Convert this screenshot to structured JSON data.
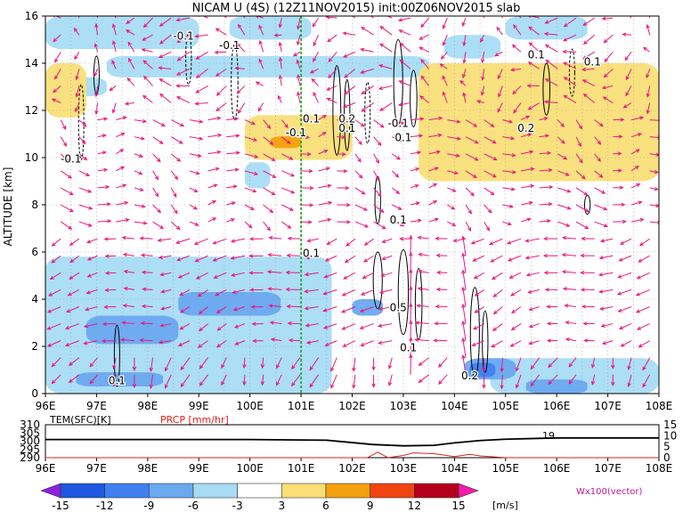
{
  "title": "NICAM U (4S) (12Z11NOV2015) init:00Z06NOV2015 slab",
  "main_panel": {
    "ylabel": "ALTITUDE [km]",
    "yticks": [
      "0",
      "2",
      "4",
      "6",
      "8",
      "10",
      "12",
      "14",
      "16"
    ],
    "xticks": [
      "96E",
      "97E",
      "98E",
      "99E",
      "100E",
      "101E",
      "102E",
      "103E",
      "104E",
      "105E",
      "106E",
      "107E",
      "108E"
    ],
    "vertical_marker_lon": 101,
    "contour_labels": [
      {
        "text": "-0.1",
        "lon": 98.7,
        "alt": 15.0
      },
      {
        "text": "-0.1",
        "lon": 99.6,
        "alt": 14.6
      },
      {
        "text": "-0.1",
        "lon": 96.5,
        "alt": 9.8
      },
      {
        "text": "-0.1",
        "lon": 100.9,
        "alt": 10.9
      },
      {
        "text": "0.1",
        "lon": 101.2,
        "alt": 11.5
      },
      {
        "text": "0.2",
        "lon": 101.9,
        "alt": 11.5
      },
      {
        "text": "0.1",
        "lon": 101.9,
        "alt": 11.1
      },
      {
        "text": "-0.1",
        "lon": 102.9,
        "alt": 11.3
      },
      {
        "text": "0.1",
        "lon": 103.0,
        "alt": 10.7
      },
      {
        "text": "0.2",
        "lon": 105.4,
        "alt": 11.1
      },
      {
        "text": "0.1",
        "lon": 105.6,
        "alt": 14.2
      },
      {
        "text": "0.1",
        "lon": 106.7,
        "alt": 13.9
      },
      {
        "text": "0.1",
        "lon": 101.2,
        "alt": 5.8
      },
      {
        "text": "0.1",
        "lon": 102.9,
        "alt": 7.2
      },
      {
        "text": "0.5",
        "lon": 102.9,
        "alt": 3.5
      },
      {
        "text": "0.1",
        "lon": 103.1,
        "alt": 1.8
      },
      {
        "text": "0.1",
        "lon": 97.4,
        "alt": 0.4
      },
      {
        "text": "0.2",
        "lon": 104.3,
        "alt": 0.6
      }
    ]
  },
  "sub_panel": {
    "tem_label": "TEM(SFC)[K]",
    "prcp_label": "PRCP [mm/hr]",
    "left_ticks": [
      "310",
      "305",
      "300",
      "295",
      "290"
    ],
    "right_ticks": [
      "15",
      "10",
      "5",
      "0"
    ],
    "marker_label": "19",
    "xticks": [
      "96E",
      "97E",
      "98E",
      "99E",
      "100E",
      "101E",
      "102E",
      "103E",
      "104E",
      "105E",
      "106E",
      "107E",
      "108E"
    ]
  },
  "colorbar": {
    "labels": [
      "-15",
      "-12",
      "-9",
      "-6",
      "-3",
      "3",
      "6",
      "9",
      "12",
      "15"
    ],
    "unit": "[m/s]",
    "colors": [
      "#8c21e0",
      "#1e58e0",
      "#3f7ff0",
      "#6aa8f0",
      "#a8dcf5",
      "#ffffff",
      "#fadf78",
      "#f5a00f",
      "#f04510",
      "#b5001c",
      "#f01ca8"
    ],
    "vector_label": "Wx100(vector)",
    "vector_color": "#e8187e"
  },
  "chart_data": {
    "type": "heatmap",
    "title": "NICAM U (4S) (12Z11NOV2015) init:00Z06NOV2015 slab",
    "xlabel": "",
    "ylabel": "ALTITUDE [km]",
    "xlim": [
      96,
      108
    ],
    "ylim": [
      0,
      16
    ],
    "colorbar_unit": "[m/s]",
    "levels": [
      -15,
      -12,
      -9,
      -6,
      -3,
      3,
      6,
      9,
      12,
      15
    ],
    "regions": [
      {
        "level": "-3",
        "lon": [
          96,
          99
        ],
        "alt": [
          14.6,
          16
        ]
      },
      {
        "level": "-3",
        "lon": [
          99.6,
          101.2
        ],
        "alt": [
          15,
          16
        ]
      },
      {
        "level": "-3",
        "lon": [
          105,
          106.6
        ],
        "alt": [
          15,
          16
        ]
      },
      {
        "level": "-3",
        "lon": [
          96.3,
          97.2
        ],
        "alt": [
          12.6,
          13.4
        ]
      },
      {
        "level": "-3",
        "lon": [
          97.2,
          103.5
        ],
        "alt": [
          13.4,
          14.3
        ]
      },
      {
        "level": "-3",
        "lon": [
          103.8,
          104.9
        ],
        "alt": [
          14.2,
          15.2
        ]
      },
      {
        "level": "-3",
        "lon": [
          99.9,
          100.4
        ],
        "alt": [
          8.7,
          9.8
        ]
      },
      {
        "level": "-3",
        "lon": [
          96,
          101.6
        ],
        "alt": [
          0,
          5.8
        ]
      },
      {
        "level": "-3",
        "lon": [
          104.7,
          108
        ],
        "alt": [
          0,
          1.5
        ]
      },
      {
        "level": "-6",
        "lon": [
          96.8,
          98.6
        ],
        "alt": [
          2.1,
          3.3
        ]
      },
      {
        "level": "-6",
        "lon": [
          98.6,
          100.6
        ],
        "alt": [
          3.3,
          4.3
        ]
      },
      {
        "level": "-6",
        "lon": [
          96.6,
          98.3
        ],
        "alt": [
          0.3,
          0.9
        ]
      },
      {
        "level": "-6",
        "lon": [
          102,
          102.6
        ],
        "alt": [
          3.3,
          4
        ]
      },
      {
        "level": "-6",
        "lon": [
          104.2,
          105.2
        ],
        "alt": [
          0.6,
          1.5
        ]
      },
      {
        "level": "-6",
        "lon": [
          105.4,
          106.6
        ],
        "alt": [
          0,
          0.6
        ]
      },
      {
        "level": "-9",
        "lon": [
          104.3,
          104.8
        ],
        "alt": [
          0.7,
          1.3
        ]
      },
      {
        "level": "3",
        "lon": [
          96,
          96.8
        ],
        "alt": [
          11.7,
          14
        ]
      },
      {
        "level": "3",
        "lon": [
          99.9,
          102
        ],
        "alt": [
          9.9,
          11.8
        ]
      },
      {
        "level": "3",
        "lon": [
          103.3,
          108
        ],
        "alt": [
          9,
          14
        ]
      },
      {
        "level": "6",
        "lon": [
          100.4,
          101
        ],
        "alt": [
          10.4,
          10.9
        ]
      }
    ],
    "contour_labels": [
      "-0.1",
      "-0.1",
      "-0.1",
      "-0.1",
      "0.1",
      "0.2",
      "0.1",
      "-0.1",
      "0.1",
      "0.2",
      "0.1",
      "0.1",
      "0.1",
      "0.1",
      "0.5",
      "0.1",
      "0.1",
      "0.2"
    ],
    "vector_field": "Wx100(vector)",
    "sub_chart": {
      "type": "line",
      "series": [
        {
          "name": "TEM(SFC)[K]",
          "axis": "left",
          "ylim": [
            290,
            310
          ],
          "x": [
            96,
            100,
            101.5,
            102.4,
            103,
            103.6,
            104,
            104.5,
            105,
            106,
            108
          ],
          "values": [
            301,
            301,
            300.6,
            298,
            297.2,
            297.5,
            299,
            300.4,
            301.2,
            302,
            302
          ]
        },
        {
          "name": "PRCP [mm/hr]",
          "axis": "right",
          "ylim": [
            0,
            15
          ],
          "x": [
            96,
            102.3,
            102.5,
            102.7,
            103,
            103.2,
            103.6,
            104,
            104.3,
            104.5,
            105,
            108
          ],
          "values": [
            0,
            0,
            2.5,
            0,
            1,
            2.2,
            1.8,
            0.5,
            1.5,
            0.8,
            0,
            0
          ]
        }
      ]
    }
  }
}
